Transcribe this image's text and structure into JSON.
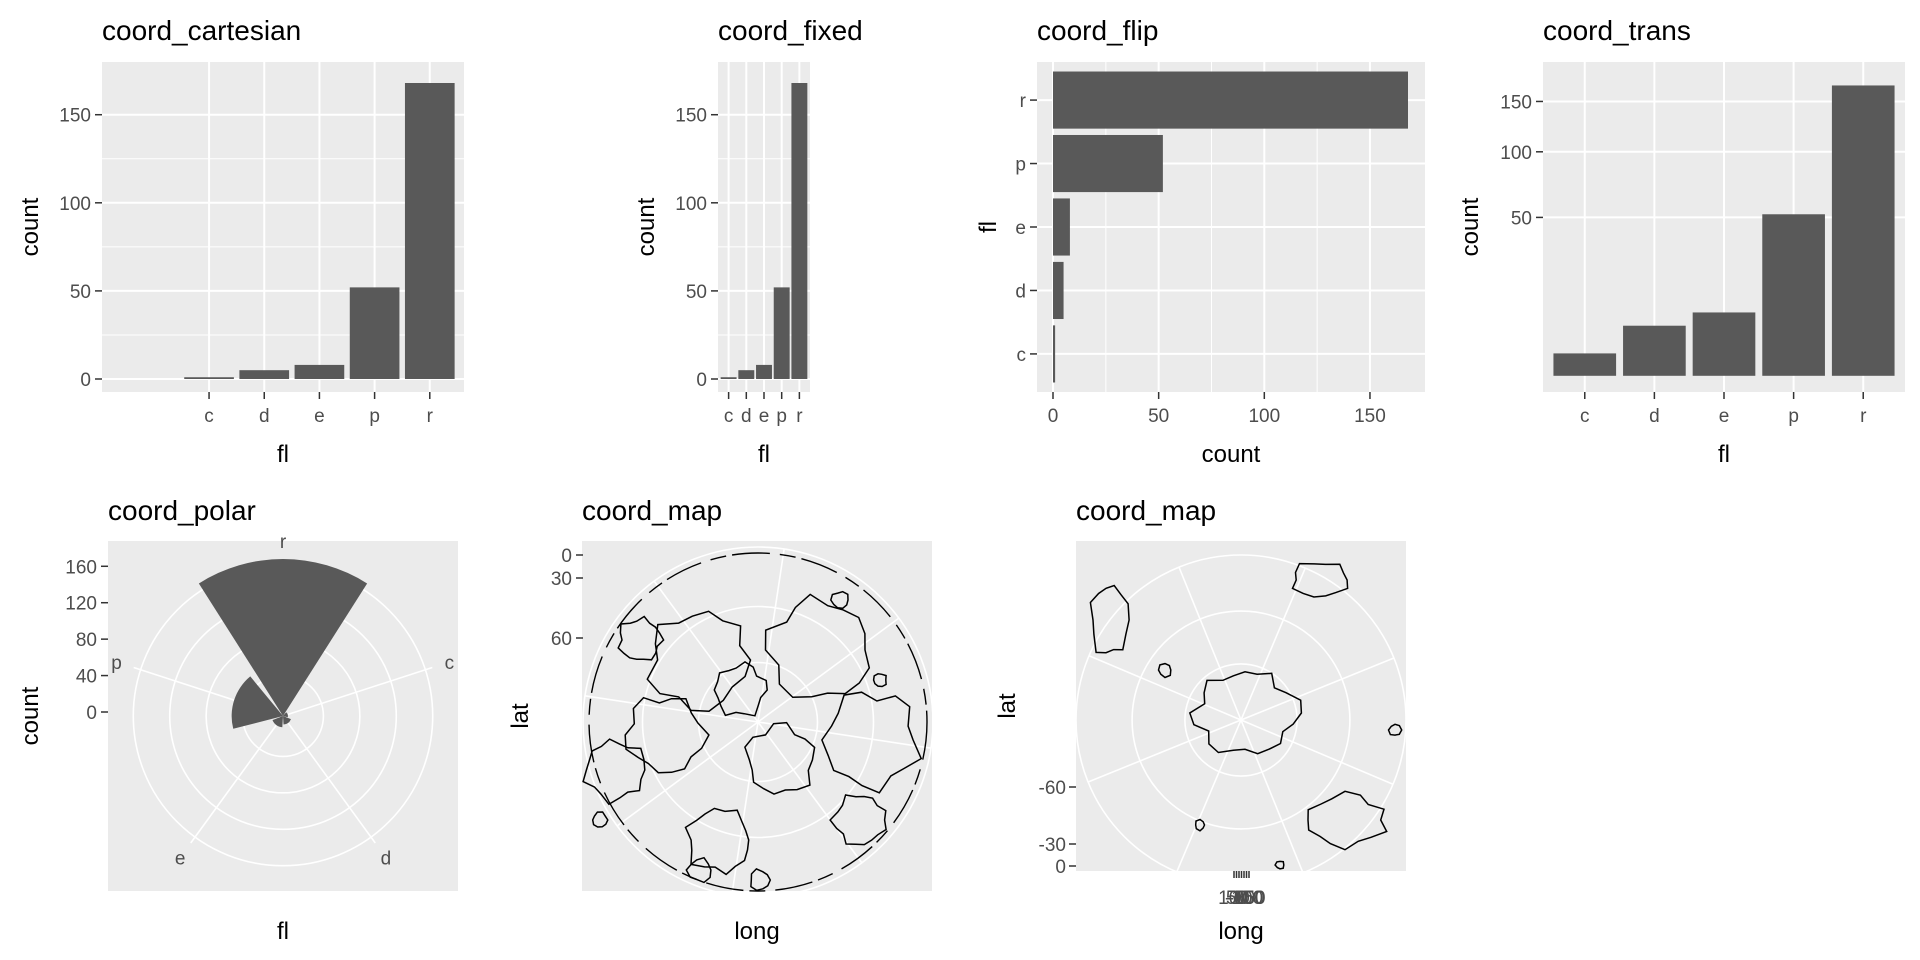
{
  "colors": {
    "panel_bg": "#ebebeb",
    "grid_major": "#ffffff",
    "bar_fill": "#595959",
    "tick_text": "#4d4d4d",
    "tick_mark": "#333333",
    "coastline": "#000000"
  },
  "chart_data": [
    {
      "type": "bar",
      "title": "coord_cartesian",
      "xlabel": "fl",
      "ylabel": "count",
      "categories": [
        "c",
        "d",
        "e",
        "p",
        "r"
      ],
      "values": [
        1,
        5,
        8,
        52,
        168
      ],
      "ylim": [
        0,
        175
      ],
      "yticks": [
        "0",
        "50",
        "100",
        "150"
      ],
      "grid": true
    },
    {
      "type": "bar",
      "title": "coord_fixed",
      "xlabel": "fl",
      "ylabel": "count",
      "categories": [
        "c",
        "d",
        "e",
        "p",
        "r"
      ],
      "values": [
        1,
        5,
        8,
        52,
        168
      ],
      "ylim": [
        0,
        175
      ],
      "yticks": [
        "0",
        "50",
        "100",
        "150"
      ],
      "grid": true
    },
    {
      "type": "bar",
      "orientation": "horizontal",
      "title": "coord_flip",
      "xlabel": "count",
      "ylabel": "fl",
      "categories": [
        "c",
        "d",
        "e",
        "p",
        "r"
      ],
      "values": [
        1,
        5,
        8,
        52,
        168
      ],
      "xlim": [
        0,
        175
      ],
      "xticks": [
        "0",
        "50",
        "100",
        "150"
      ],
      "grid": true
    },
    {
      "type": "bar",
      "title": "coord_trans",
      "xlabel": "fl",
      "ylabel": "count",
      "categories": [
        "c",
        "d",
        "e",
        "p",
        "r"
      ],
      "values": [
        1,
        5,
        8,
        52,
        168
      ],
      "yscale": "sqrt",
      "yticks": [
        "50",
        "100",
        "150"
      ],
      "grid": true
    },
    {
      "type": "pie",
      "subtype": "polar-bar",
      "title": "coord_polar",
      "xlabel": "fl",
      "ylabel": "count",
      "categories": [
        "c",
        "d",
        "e",
        "p",
        "r"
      ],
      "values": [
        1,
        5,
        8,
        52,
        168
      ],
      "yticks": [
        "0",
        "40",
        "80",
        "120",
        "160"
      ],
      "grid": true
    },
    {
      "type": "map",
      "projection": "orthographic",
      "orientation": "north polar",
      "title": "coord_map",
      "xlabel": "long",
      "ylabel": "lat",
      "yticks": [
        "0",
        "30",
        "60"
      ]
    },
    {
      "type": "map",
      "projection": "orthographic",
      "orientation": "south polar",
      "title": "coord_map",
      "xlabel": "long",
      "ylabel": "lat",
      "yticks": [
        "-60",
        "-30",
        "0"
      ],
      "xticks_overlapping": [
        "100",
        "50",
        "0",
        "-50",
        "-100",
        "-150",
        "150"
      ]
    }
  ]
}
